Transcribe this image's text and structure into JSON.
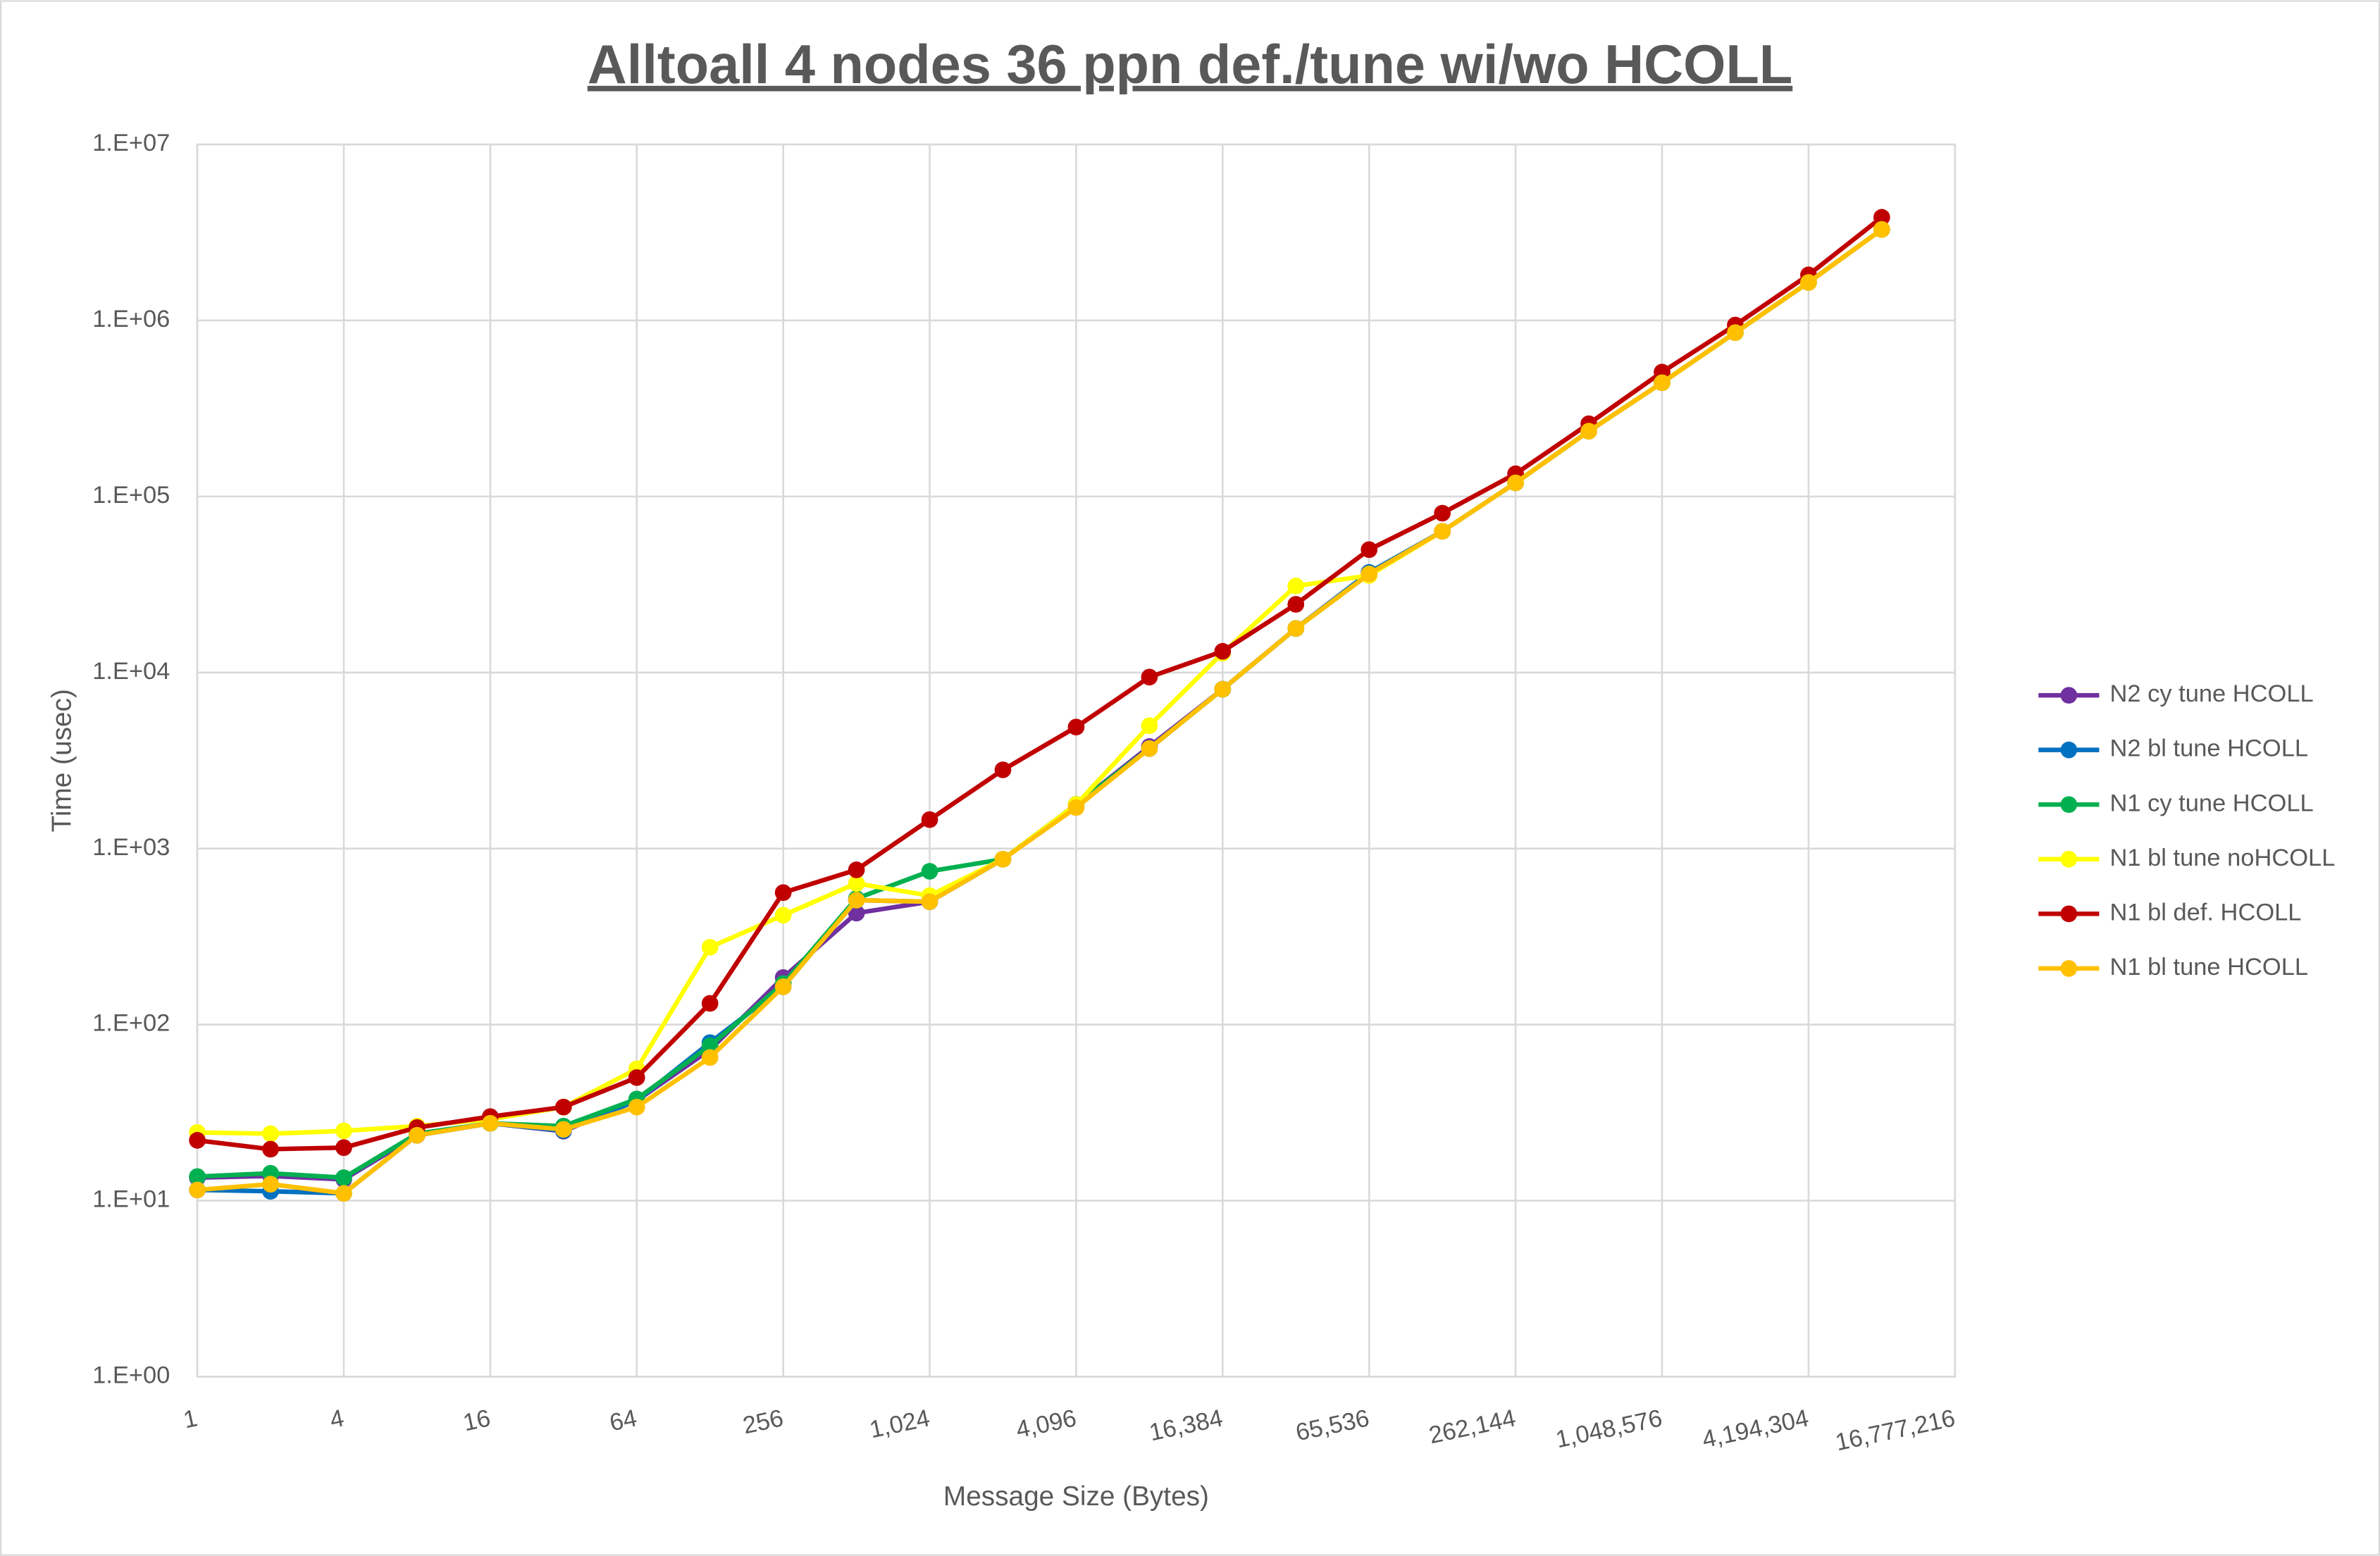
{
  "chart_data": {
    "type": "line",
    "title": "Alltoall 4 nodes 36 ppn def./tune wi/wo HCOLL",
    "x_label": "Message Size (Bytes)",
    "y_label": "Time (usec)",
    "x": [
      1,
      2,
      4,
      8,
      16,
      32,
      64,
      128,
      256,
      512,
      1024,
      2048,
      4096,
      8192,
      16384,
      32768,
      65536,
      131072,
      262144,
      524288,
      1048576,
      2097152,
      4194304,
      8388608
    ],
    "series": [
      {
        "name": "N2 cy tune HCOLL",
        "color": "#7030a0",
        "values": [
          13.5,
          13.8,
          13.2,
          23.5,
          27.5,
          24.8,
          37,
          72,
          185,
          430,
          499,
          870,
          1780,
          3800,
          8040,
          17800,
          37000,
          63400,
          119600,
          235000,
          443000,
          853000,
          1645000,
          3290000
        ]
      },
      {
        "name": "N2 bl tune HCOLL",
        "color": "#0070c0",
        "values": [
          11.5,
          11.3,
          11.0,
          23.5,
          27.5,
          25,
          37,
          79,
          164,
          509,
          499,
          870,
          1780,
          3700,
          8040,
          17800,
          37000,
          63400,
          119600,
          235000,
          443000,
          853000,
          1645000,
          3290000
        ]
      },
      {
        "name": "N1 cy tune HCOLL",
        "color": "#00b050",
        "values": [
          13.7,
          14.3,
          13.5,
          24,
          27.5,
          26.5,
          37.8,
          75.7,
          171,
          520,
          743,
          870,
          1780,
          3700,
          8040,
          17800,
          36300,
          63400,
          119600,
          235000,
          443000,
          853000,
          1645000,
          3290000
        ]
      },
      {
        "name": "N1 bl tune noHCOLL",
        "color": "#ffff00",
        "values": [
          24.4,
          24,
          24.9,
          26.5,
          29,
          34,
          56,
          275,
          418,
          634,
          540,
          870,
          1780,
          4990,
          12900,
          31000,
          35600,
          63400,
          119600,
          235000,
          443000,
          853000,
          1645000,
          3290000
        ]
      },
      {
        "name": "N1 bl def. HCOLL",
        "color": "#c00000",
        "values": [
          22,
          19.6,
          20,
          26,
          30,
          34,
          50,
          132,
          562,
          757,
          1460,
          2800,
          4900,
          9420,
          13200,
          24400,
          49900,
          80400,
          134600,
          259000,
          509000,
          942000,
          1815000,
          3855000
        ]
      },
      {
        "name": "N1 bl tune HCOLL",
        "color": "#ffc000",
        "values": [
          11.5,
          12.4,
          11.0,
          23.5,
          27.5,
          25.4,
          34,
          65,
          164,
          509,
          499,
          870,
          1710,
          3700,
          8040,
          17800,
          36300,
          63400,
          119600,
          235000,
          443000,
          853000,
          1645000,
          3290000
        ]
      }
    ],
    "xscale": "log2",
    "yscale": "log10",
    "xlim": [
      1,
      16777216
    ],
    "ylim": [
      1,
      10000000
    ],
    "xticks": [
      1,
      4,
      16,
      64,
      256,
      {
        "value": 1024,
        "label": "1,024"
      },
      {
        "value": 4096,
        "label": "4,096"
      },
      {
        "value": 16384,
        "label": "16,384"
      },
      {
        "value": 65536,
        "label": "65,536"
      },
      {
        "value": 262144,
        "label": "262,144"
      },
      {
        "value": 1048576,
        "label": "1,048,576"
      },
      {
        "value": 4194304,
        "label": "4,194,304"
      },
      {
        "value": 16777216,
        "label": "16,777,216"
      }
    ],
    "yticks": [
      {
        "value": 1,
        "label": "1.E+00"
      },
      {
        "value": 10,
        "label": "1.E+01"
      },
      {
        "value": 100,
        "label": "1.E+02"
      },
      {
        "value": 1000,
        "label": "1.E+03"
      },
      {
        "value": 10000,
        "label": "1.E+04"
      },
      {
        "value": 100000,
        "label": "1.E+05"
      },
      {
        "value": 1000000,
        "label": "1.E+06"
      },
      {
        "value": 10000000,
        "label": "1.E+07"
      }
    ],
    "grid": true,
    "legend": "right",
    "markers": true
  }
}
